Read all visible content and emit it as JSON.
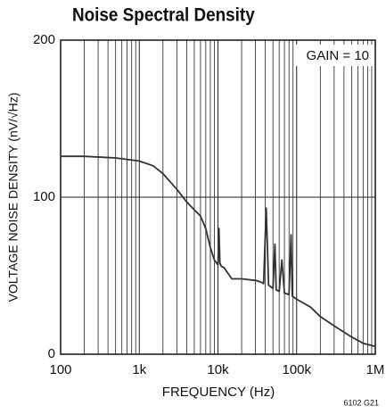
{
  "chart_data": {
    "type": "line",
    "title": "Noise Spectral Density",
    "annotation": "GAIN = 10",
    "xlabel": "FREQUENCY (Hz)",
    "ylabel": "VOLTAGE NOISE DENSITY (nV/√Hz)",
    "footnote": "6102 G21",
    "log_x": true,
    "grid": true,
    "xlim": [
      100,
      1000000
    ],
    "xticks": [
      100,
      {
        "value": 1000,
        "label": "1k"
      },
      {
        "value": 10000,
        "label": "10k"
      },
      {
        "value": 100000,
        "label": "100k"
      },
      {
        "value": 1000000,
        "label": "1M"
      }
    ],
    "ylim": [
      0,
      200
    ],
    "yticks": [
      0,
      100,
      200
    ],
    "series": [
      {
        "color": "#333333",
        "x": [
          100,
          200,
          500,
          1000,
          1500,
          2000,
          3000,
          4000,
          5000,
          6000,
          7000,
          8000,
          9000,
          10000,
          10300,
          10600,
          11000,
          12000,
          15000,
          20000,
          30000,
          35000,
          38000,
          41000,
          44000,
          50000,
          53000,
          55000,
          60000,
          65000,
          70000,
          80000,
          85000,
          88000,
          100000,
          150000,
          200000,
          300000,
          500000,
          700000,
          1000000
        ],
        "values": [
          126,
          126,
          125,
          123,
          120,
          115,
          105,
          97,
          92,
          88,
          80,
          68,
          60,
          57,
          80,
          58,
          56,
          55,
          48,
          48,
          47,
          46,
          45,
          93,
          44,
          42,
          70,
          41,
          40,
          60,
          39,
          38,
          76,
          37,
          35,
          30,
          24,
          18,
          11,
          7,
          5
        ]
      }
    ]
  }
}
